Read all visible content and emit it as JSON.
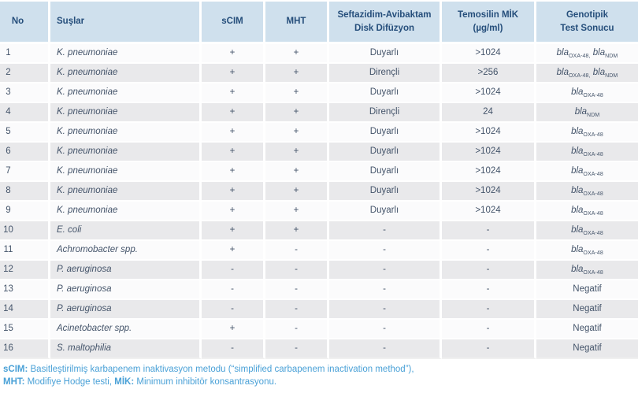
{
  "table": {
    "headers": [
      "No",
      "Suşlar",
      "sCIM",
      "MHT",
      "Seftazidim-Avibaktam\nDisk Difüzyon",
      "Temosilin MİK\n(µg/ml)",
      "Genotipik\nTest Sonucu"
    ],
    "rows": [
      {
        "no": "1",
        "strain": "K. pneumoniae",
        "scim": "+",
        "mht": "+",
        "ceftazidime_avibactam": "Duyarlı",
        "temocillin_mic": ">1024",
        "genotype": [
          {
            "gene": "bla",
            "sub": "OXA-48,"
          },
          {
            "gene": "bla",
            "sub": "NDM"
          }
        ]
      },
      {
        "no": "2",
        "strain": "K. pneumoniae",
        "scim": "+",
        "mht": "+",
        "ceftazidime_avibactam": "Dirençli",
        "temocillin_mic": ">256",
        "genotype": [
          {
            "gene": "bla",
            "sub": "OXA-48,"
          },
          {
            "gene": "bla",
            "sub": "NDM"
          }
        ]
      },
      {
        "no": "3",
        "strain": "K. pneumoniae",
        "scim": "+",
        "mht": "+",
        "ceftazidime_avibactam": "Duyarlı",
        "temocillin_mic": ">1024",
        "genotype": [
          {
            "gene": "bla",
            "sub": "OXA-48"
          }
        ]
      },
      {
        "no": "4",
        "strain": "K. pneumoniae",
        "scim": "+",
        "mht": "+",
        "ceftazidime_avibactam": "Dirençli",
        "temocillin_mic": "24",
        "genotype": [
          {
            "gene": "bla",
            "sub": "NDM"
          }
        ]
      },
      {
        "no": "5",
        "strain": "K. pneumoniae",
        "scim": "+",
        "mht": "+",
        "ceftazidime_avibactam": "Duyarlı",
        "temocillin_mic": ">1024",
        "genotype": [
          {
            "gene": "bla",
            "sub": "OXA-48"
          }
        ]
      },
      {
        "no": "6",
        "strain": "K. pneumoniae",
        "scim": "+",
        "mht": "+",
        "ceftazidime_avibactam": "Duyarlı",
        "temocillin_mic": ">1024",
        "genotype": [
          {
            "gene": "bla",
            "sub": "OXA-48"
          }
        ]
      },
      {
        "no": "7",
        "strain": "K. pneumoniae",
        "scim": "+",
        "mht": "+",
        "ceftazidime_avibactam": "Duyarlı",
        "temocillin_mic": ">1024",
        "genotype": [
          {
            "gene": "bla",
            "sub": "OXA-48"
          }
        ]
      },
      {
        "no": "8",
        "strain": "K. pneumoniae",
        "scim": "+",
        "mht": "+",
        "ceftazidime_avibactam": "Duyarlı",
        "temocillin_mic": ">1024",
        "genotype": [
          {
            "gene": "bla",
            "sub": "OXA-48"
          }
        ]
      },
      {
        "no": "9",
        "strain": "K. pneumoniae",
        "scim": "+",
        "mht": "+",
        "ceftazidime_avibactam": "Duyarlı",
        "temocillin_mic": ">1024",
        "genotype": [
          {
            "gene": "bla",
            "sub": "OXA-48"
          }
        ]
      },
      {
        "no": "10",
        "strain": "E. coli",
        "scim": "+",
        "mht": "+",
        "ceftazidime_avibactam": "-",
        "temocillin_mic": "-",
        "genotype": [
          {
            "gene": "bla",
            "sub": "OXA-48"
          }
        ]
      },
      {
        "no": "11",
        "strain": "Achromobacter spp.",
        "scim": "+",
        "mht": "-",
        "ceftazidime_avibactam": "-",
        "temocillin_mic": "-",
        "genotype": [
          {
            "gene": "bla",
            "sub": "OXA-48"
          }
        ]
      },
      {
        "no": "12",
        "strain": "P. aeruginosa",
        "scim": "-",
        "mht": "-",
        "ceftazidime_avibactam": "-",
        "temocillin_mic": "-",
        "genotype": [
          {
            "gene": "bla",
            "sub": "OXA-48"
          }
        ]
      },
      {
        "no": "13",
        "strain": "P. aeruginosa",
        "scim": "-",
        "mht": "-",
        "ceftazidime_avibactam": "-",
        "temocillin_mic": "-",
        "genotype": "Negatif"
      },
      {
        "no": "14",
        "strain": "P. aeruginosa",
        "scim": "-",
        "mht": "-",
        "ceftazidime_avibactam": "-",
        "temocillin_mic": "-",
        "genotype": "Negatif"
      },
      {
        "no": "15",
        "strain": "Acinetobacter spp.",
        "scim": "+",
        "mht": "-",
        "ceftazidime_avibactam": "-",
        "temocillin_mic": "-",
        "genotype": "Negatif"
      },
      {
        "no": "16",
        "strain": "S. maltophilia",
        "scim": "-",
        "mht": "-",
        "ceftazidime_avibactam": "-",
        "temocillin_mic": "-",
        "genotype": "Negatif"
      }
    ]
  },
  "footnotes": {
    "segments": [
      {
        "bold": "sCIM:"
      },
      {
        "text": " Basitleştirilmiş karbapenem inaktivasyon metodu (“simplified carbapenem inactivation method”),"
      },
      {
        "break": true
      },
      {
        "bold": "MHT:"
      },
      {
        "text": " Modifiye Hodge testi, "
      },
      {
        "bold": "MİK:"
      },
      {
        "text": " Minimum inhibitör konsantrasyonu."
      }
    ]
  },
  "colors": {
    "header_bg": "#cfe0ed",
    "header_text": "#254e7b",
    "row_odd_bg": "#fbfbfc",
    "row_even_bg": "#e9e9eb",
    "body_text": "#44546a",
    "footnote_text": "#4aa1d7"
  }
}
